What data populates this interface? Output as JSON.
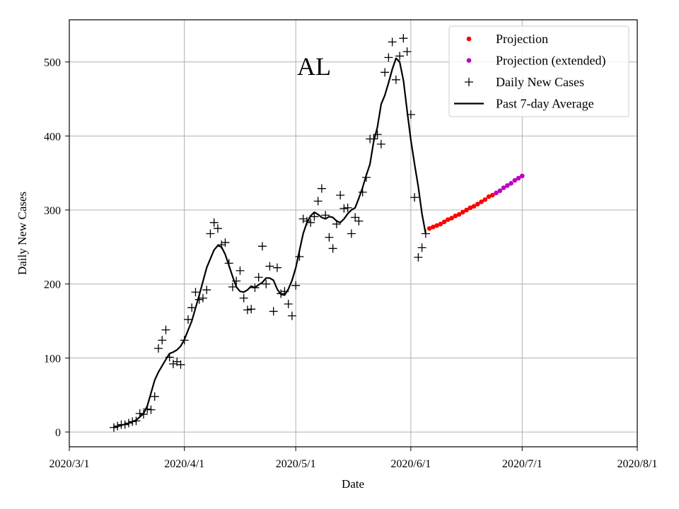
{
  "chart_data": {
    "type": "scatter",
    "annotation": "AL",
    "xlabel": "Date",
    "ylabel": "Daily New Cases",
    "x_ticks": [
      "2020/3/1",
      "2020/4/1",
      "2020/5/1",
      "2020/6/1",
      "2020/7/1",
      "2020/8/1"
    ],
    "x_ticks_dates": [
      "2020-03-01",
      "2020-04-01",
      "2020-05-01",
      "2020-06-01",
      "2020-07-01",
      "2020-08-01"
    ],
    "y_ticks": [
      0,
      100,
      200,
      300,
      400,
      500
    ],
    "xlim": [
      "2020-03-01",
      "2020-08-01"
    ],
    "ylim": [
      -20,
      557
    ],
    "grid": true,
    "legend_position": "top-right",
    "legend": [
      "Projection",
      "Projection (extended)",
      "Daily New Cases",
      "Past 7-day Average"
    ],
    "colors": {
      "projection": "#ff0000",
      "projection_extended": "#bf00bf",
      "daily": "#000000",
      "average": "#000000"
    },
    "series": [
      {
        "name": "Daily New Cases",
        "marker": "plus",
        "points": [
          [
            "2020-03-13",
            6
          ],
          [
            "2020-03-14",
            8
          ],
          [
            "2020-03-15",
            10
          ],
          [
            "2020-03-16",
            10
          ],
          [
            "2020-03-17",
            12
          ],
          [
            "2020-03-18",
            14
          ],
          [
            "2020-03-19",
            15
          ],
          [
            "2020-03-20",
            25
          ],
          [
            "2020-03-21",
            24
          ],
          [
            "2020-03-22",
            31
          ],
          [
            "2020-03-23",
            30
          ],
          [
            "2020-03-24",
            48
          ],
          [
            "2020-03-25",
            113
          ],
          [
            "2020-03-26",
            124
          ],
          [
            "2020-03-27",
            138
          ],
          [
            "2020-03-28",
            101
          ],
          [
            "2020-03-29",
            92
          ],
          [
            "2020-03-30",
            95
          ],
          [
            "2020-03-31",
            91
          ],
          [
            "2020-04-01",
            124
          ],
          [
            "2020-04-02",
            152
          ],
          [
            "2020-04-03",
            168
          ],
          [
            "2020-04-04",
            189
          ],
          [
            "2020-04-05",
            179
          ],
          [
            "2020-04-06",
            181
          ],
          [
            "2020-04-07",
            192
          ],
          [
            "2020-04-08",
            268
          ],
          [
            "2020-04-09",
            283
          ],
          [
            "2020-04-10",
            275
          ],
          [
            "2020-04-11",
            253
          ],
          [
            "2020-04-12",
            256
          ],
          [
            "2020-04-13",
            228
          ],
          [
            "2020-04-14",
            196
          ],
          [
            "2020-04-15",
            204
          ],
          [
            "2020-04-16",
            218
          ],
          [
            "2020-04-17",
            181
          ],
          [
            "2020-04-18",
            165
          ],
          [
            "2020-04-19",
            166
          ],
          [
            "2020-04-20",
            195
          ],
          [
            "2020-04-21",
            209
          ],
          [
            "2020-04-22",
            251
          ],
          [
            "2020-04-23",
            200
          ],
          [
            "2020-04-24",
            224
          ],
          [
            "2020-04-25",
            163
          ],
          [
            "2020-04-26",
            222
          ],
          [
            "2020-04-27",
            187
          ],
          [
            "2020-04-28",
            190
          ],
          [
            "2020-04-29",
            173
          ],
          [
            "2020-04-30",
            157
          ],
          [
            "2020-05-01",
            198
          ],
          [
            "2020-05-02",
            237
          ],
          [
            "2020-05-03",
            288
          ],
          [
            "2020-05-04",
            285
          ],
          [
            "2020-05-05",
            283
          ],
          [
            "2020-05-06",
            291
          ],
          [
            "2020-05-07",
            312
          ],
          [
            "2020-05-08",
            329
          ],
          [
            "2020-05-09",
            293
          ],
          [
            "2020-05-10",
            263
          ],
          [
            "2020-05-11",
            248
          ],
          [
            "2020-05-12",
            281
          ],
          [
            "2020-05-13",
            320
          ],
          [
            "2020-05-14",
            302
          ],
          [
            "2020-05-15",
            303
          ],
          [
            "2020-05-16",
            268
          ],
          [
            "2020-05-17",
            290
          ],
          [
            "2020-05-18",
            285
          ],
          [
            "2020-05-19",
            324
          ],
          [
            "2020-05-20",
            344
          ],
          [
            "2020-05-21",
            396
          ],
          [
            "2020-05-22",
            396
          ],
          [
            "2020-05-23",
            402
          ],
          [
            "2020-05-24",
            389
          ],
          [
            "2020-05-25",
            486
          ],
          [
            "2020-05-26",
            506
          ],
          [
            "2020-05-27",
            527
          ],
          [
            "2020-05-28",
            476
          ],
          [
            "2020-05-29",
            508
          ],
          [
            "2020-05-30",
            532
          ],
          [
            "2020-05-31",
            514
          ],
          [
            "2020-06-01",
            429
          ],
          [
            "2020-06-02",
            317
          ],
          [
            "2020-06-03",
            236
          ],
          [
            "2020-06-04",
            249
          ],
          [
            "2020-06-05",
            268
          ]
        ]
      },
      {
        "name": "Past 7-day Average",
        "marker": "line",
        "points": [
          [
            "2020-03-13",
            6
          ],
          [
            "2020-03-15",
            9
          ],
          [
            "2020-03-17",
            12
          ],
          [
            "2020-03-19",
            16
          ],
          [
            "2020-03-21",
            25
          ],
          [
            "2020-03-22",
            35
          ],
          [
            "2020-03-24",
            70
          ],
          [
            "2020-03-25",
            81
          ],
          [
            "2020-03-27",
            98
          ],
          [
            "2020-03-28",
            106
          ],
          [
            "2020-03-29",
            108
          ],
          [
            "2020-03-30",
            111
          ],
          [
            "2020-03-31",
            116
          ],
          [
            "2020-04-01",
            125
          ],
          [
            "2020-04-03",
            150
          ],
          [
            "2020-04-05",
            185
          ],
          [
            "2020-04-07",
            222
          ],
          [
            "2020-04-08",
            234
          ],
          [
            "2020-04-09",
            246
          ],
          [
            "2020-04-10",
            252
          ],
          [
            "2020-04-11",
            250
          ],
          [
            "2020-04-12",
            240
          ],
          [
            "2020-04-13",
            225
          ],
          [
            "2020-04-14",
            210
          ],
          [
            "2020-04-15",
            196
          ],
          [
            "2020-04-16",
            190
          ],
          [
            "2020-04-17",
            189
          ],
          [
            "2020-04-18",
            192
          ],
          [
            "2020-04-19",
            197
          ],
          [
            "2020-04-20",
            195
          ],
          [
            "2020-04-21",
            199
          ],
          [
            "2020-04-22",
            202
          ],
          [
            "2020-04-23",
            208
          ],
          [
            "2020-04-24",
            208
          ],
          [
            "2020-04-25",
            205
          ],
          [
            "2020-04-26",
            193
          ],
          [
            "2020-04-27",
            186
          ],
          [
            "2020-04-28",
            185
          ],
          [
            "2020-04-29",
            193
          ],
          [
            "2020-04-30",
            205
          ],
          [
            "2020-05-01",
            222
          ],
          [
            "2020-05-02",
            245
          ],
          [
            "2020-05-03",
            268
          ],
          [
            "2020-05-04",
            283
          ],
          [
            "2020-05-05",
            292
          ],
          [
            "2020-05-06",
            297
          ],
          [
            "2020-05-07",
            294
          ],
          [
            "2020-05-08",
            290
          ],
          [
            "2020-05-09",
            288
          ],
          [
            "2020-05-10",
            291
          ],
          [
            "2020-05-11",
            290
          ],
          [
            "2020-05-12",
            285
          ],
          [
            "2020-05-13",
            283
          ],
          [
            "2020-05-14",
            288
          ],
          [
            "2020-05-15",
            295
          ],
          [
            "2020-05-16",
            300
          ],
          [
            "2020-05-17",
            303
          ],
          [
            "2020-05-18",
            316
          ],
          [
            "2020-05-19",
            330
          ],
          [
            "2020-05-20",
            347
          ],
          [
            "2020-05-21",
            362
          ],
          [
            "2020-05-22",
            393
          ],
          [
            "2020-05-23",
            412
          ],
          [
            "2020-05-24",
            443
          ],
          [
            "2020-05-25",
            455
          ],
          [
            "2020-05-26",
            472
          ],
          [
            "2020-05-27",
            490
          ],
          [
            "2020-05-28",
            505
          ],
          [
            "2020-05-29",
            500
          ],
          [
            "2020-05-30",
            475
          ],
          [
            "2020-05-31",
            434
          ],
          [
            "2020-06-01",
            395
          ],
          [
            "2020-06-02",
            362
          ],
          [
            "2020-06-03",
            332
          ],
          [
            "2020-06-04",
            295
          ],
          [
            "2020-06-05",
            268
          ]
        ]
      },
      {
        "name": "Projection",
        "marker": "dot",
        "points": [
          [
            "2020-06-06",
            275
          ],
          [
            "2020-06-07",
            277
          ],
          [
            "2020-06-08",
            279
          ],
          [
            "2020-06-09",
            281
          ],
          [
            "2020-06-10",
            284
          ],
          [
            "2020-06-11",
            287
          ],
          [
            "2020-06-12",
            289
          ],
          [
            "2020-06-13",
            292
          ],
          [
            "2020-06-14",
            294
          ],
          [
            "2020-06-15",
            297
          ],
          [
            "2020-06-16",
            300
          ],
          [
            "2020-06-17",
            303
          ],
          [
            "2020-06-18",
            305
          ],
          [
            "2020-06-19",
            308
          ],
          [
            "2020-06-20",
            311
          ],
          [
            "2020-06-21",
            314
          ],
          [
            "2020-06-22",
            318
          ],
          [
            "2020-06-23",
            320
          ]
        ]
      },
      {
        "name": "Projection (extended)",
        "marker": "dot",
        "points": [
          [
            "2020-06-24",
            323
          ],
          [
            "2020-06-25",
            326
          ],
          [
            "2020-06-26",
            330
          ],
          [
            "2020-06-27",
            333
          ],
          [
            "2020-06-28",
            336
          ],
          [
            "2020-06-29",
            340
          ],
          [
            "2020-06-30",
            343
          ],
          [
            "2020-07-01",
            346
          ]
        ]
      }
    ]
  }
}
